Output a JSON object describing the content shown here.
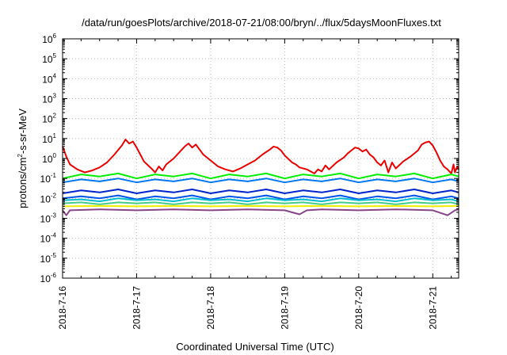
{
  "chart_data": {
    "type": "line",
    "title": "/data/run/goesPlots/archive/2018-07-21/08:00/bryn/../flux/5daysMoonFluxes.txt",
    "xlabel": "Coordinated Universal Time (UTC)",
    "ylabel_base": "protons/cm",
    "ylabel_exp": "2",
    "ylabel_rest": "-s-sr-MeV",
    "y_scale": "log",
    "ylim_exponent": [
      -6,
      6
    ],
    "y_tick_base": "10",
    "y_tick_exponents": [
      "-6",
      "-5",
      "-4",
      "-3",
      "-2",
      "-1",
      "0",
      "1",
      "2",
      "3",
      "4",
      "5",
      "6"
    ],
    "x_unit": "days since 2018-7-16 00:00 UTC",
    "xlim": [
      0,
      5.35
    ],
    "x_tick_positions": [
      0,
      1,
      2,
      3,
      4,
      5
    ],
    "x_tick_labels": [
      "2018-7-16",
      "2018-7-17",
      "2018-7-18",
      "2018-7-19",
      "2018-7-20",
      "2018-7-21"
    ],
    "grid": true,
    "legend": "none",
    "series": [
      {
        "color": "#ee0000",
        "points": [
          [
            0.0,
            0.6
          ],
          [
            0.05,
            0.1
          ],
          [
            0.1,
            -0.3
          ],
          [
            0.2,
            -0.55
          ],
          [
            0.3,
            -0.7
          ],
          [
            0.4,
            -0.6
          ],
          [
            0.5,
            -0.45
          ],
          [
            0.6,
            -0.2
          ],
          [
            0.7,
            0.2
          ],
          [
            0.8,
            0.65
          ],
          [
            0.85,
            0.95
          ],
          [
            0.9,
            0.75
          ],
          [
            0.95,
            0.85
          ],
          [
            1.0,
            0.55
          ],
          [
            1.05,
            0.2
          ],
          [
            1.1,
            -0.15
          ],
          [
            1.2,
            -0.5
          ],
          [
            1.25,
            -0.7
          ],
          [
            1.3,
            -0.4
          ],
          [
            1.35,
            -0.6
          ],
          [
            1.4,
            -0.3
          ],
          [
            1.5,
            0.0
          ],
          [
            1.6,
            0.4
          ],
          [
            1.65,
            0.6
          ],
          [
            1.7,
            0.75
          ],
          [
            1.75,
            0.55
          ],
          [
            1.8,
            0.7
          ],
          [
            1.85,
            0.45
          ],
          [
            1.9,
            0.2
          ],
          [
            2.0,
            -0.1
          ],
          [
            2.1,
            -0.4
          ],
          [
            2.2,
            -0.55
          ],
          [
            2.3,
            -0.65
          ],
          [
            2.4,
            -0.5
          ],
          [
            2.5,
            -0.3
          ],
          [
            2.6,
            -0.1
          ],
          [
            2.7,
            0.2
          ],
          [
            2.8,
            0.45
          ],
          [
            2.85,
            0.6
          ],
          [
            2.9,
            0.55
          ],
          [
            2.95,
            0.4
          ],
          [
            3.0,
            0.15
          ],
          [
            3.1,
            -0.2
          ],
          [
            3.15,
            -0.3
          ],
          [
            3.2,
            -0.45
          ],
          [
            3.3,
            -0.55
          ],
          [
            3.4,
            -0.75
          ],
          [
            3.45,
            -0.55
          ],
          [
            3.5,
            -0.65
          ],
          [
            3.55,
            -0.35
          ],
          [
            3.6,
            -0.55
          ],
          [
            3.7,
            -0.2
          ],
          [
            3.8,
            0.05
          ],
          [
            3.85,
            0.25
          ],
          [
            3.9,
            0.4
          ],
          [
            3.95,
            0.55
          ],
          [
            4.0,
            0.5
          ],
          [
            4.05,
            0.35
          ],
          [
            4.1,
            0.45
          ],
          [
            4.15,
            0.2
          ],
          [
            4.2,
            0.05
          ],
          [
            4.25,
            -0.2
          ],
          [
            4.3,
            -0.35
          ],
          [
            4.35,
            -0.1
          ],
          [
            4.4,
            -0.7
          ],
          [
            4.45,
            -0.2
          ],
          [
            4.5,
            -0.5
          ],
          [
            4.6,
            -0.15
          ],
          [
            4.7,
            0.1
          ],
          [
            4.8,
            0.4
          ],
          [
            4.85,
            0.7
          ],
          [
            4.9,
            0.8
          ],
          [
            4.95,
            0.85
          ],
          [
            5.0,
            0.65
          ],
          [
            5.05,
            0.3
          ],
          [
            5.1,
            -0.1
          ],
          [
            5.15,
            -0.4
          ],
          [
            5.2,
            -0.55
          ],
          [
            5.25,
            -0.75
          ],
          [
            5.28,
            -0.3
          ],
          [
            5.3,
            -0.7
          ],
          [
            5.33,
            -0.4
          ],
          [
            5.35,
            -0.55
          ]
        ]
      },
      {
        "color": "#00ee00",
        "points": [
          [
            0.0,
            -1.0
          ],
          [
            0.25,
            -0.8
          ],
          [
            0.5,
            -0.9
          ],
          [
            0.75,
            -0.75
          ],
          [
            1.0,
            -1.0
          ],
          [
            1.25,
            -0.8
          ],
          [
            1.5,
            -0.9
          ],
          [
            1.75,
            -0.75
          ],
          [
            2.0,
            -1.0
          ],
          [
            2.25,
            -0.8
          ],
          [
            2.5,
            -0.9
          ],
          [
            2.75,
            -0.75
          ],
          [
            3.0,
            -1.0
          ],
          [
            3.25,
            -0.8
          ],
          [
            3.5,
            -0.9
          ],
          [
            3.75,
            -0.75
          ],
          [
            4.0,
            -1.0
          ],
          [
            4.25,
            -0.8
          ],
          [
            4.5,
            -0.9
          ],
          [
            4.75,
            -0.75
          ],
          [
            5.0,
            -1.0
          ],
          [
            5.25,
            -0.8
          ],
          [
            5.35,
            -0.9
          ]
        ]
      },
      {
        "color": "#0077ee",
        "points": [
          [
            0.0,
            -1.2
          ],
          [
            0.25,
            -1.05
          ],
          [
            0.5,
            -1.15
          ],
          [
            0.75,
            -1.0
          ],
          [
            1.0,
            -1.2
          ],
          [
            1.25,
            -1.05
          ],
          [
            1.5,
            -1.15
          ],
          [
            1.75,
            -1.0
          ],
          [
            2.0,
            -1.2
          ],
          [
            2.25,
            -1.05
          ],
          [
            2.5,
            -1.15
          ],
          [
            2.75,
            -1.0
          ],
          [
            3.0,
            -1.2
          ],
          [
            3.25,
            -1.05
          ],
          [
            3.5,
            -1.15
          ],
          [
            3.75,
            -1.0
          ],
          [
            4.0,
            -1.2
          ],
          [
            4.25,
            -1.05
          ],
          [
            4.5,
            -1.15
          ],
          [
            4.75,
            -1.0
          ],
          [
            5.0,
            -1.2
          ],
          [
            5.25,
            -1.05
          ],
          [
            5.35,
            -1.15
          ]
        ]
      },
      {
        "color": "#0022cc",
        "points": [
          [
            0.0,
            -1.75
          ],
          [
            0.25,
            -1.6
          ],
          [
            0.5,
            -1.7
          ],
          [
            0.75,
            -1.55
          ],
          [
            1.0,
            -1.75
          ],
          [
            1.25,
            -1.6
          ],
          [
            1.5,
            -1.7
          ],
          [
            1.75,
            -1.55
          ],
          [
            2.0,
            -1.75
          ],
          [
            2.25,
            -1.6
          ],
          [
            2.5,
            -1.7
          ],
          [
            2.75,
            -1.55
          ],
          [
            3.0,
            -1.75
          ],
          [
            3.25,
            -1.6
          ],
          [
            3.5,
            -1.7
          ],
          [
            3.75,
            -1.55
          ],
          [
            4.0,
            -1.75
          ],
          [
            4.25,
            -1.6
          ],
          [
            4.5,
            -1.7
          ],
          [
            4.75,
            -1.55
          ],
          [
            5.0,
            -1.75
          ],
          [
            5.25,
            -1.6
          ],
          [
            5.35,
            -1.7
          ]
        ]
      },
      {
        "color": "#0055ee",
        "points": [
          [
            0.0,
            -2.0
          ],
          [
            0.25,
            -1.9
          ],
          [
            0.5,
            -2.0
          ],
          [
            0.75,
            -1.85
          ],
          [
            1.0,
            -2.05
          ],
          [
            1.25,
            -1.9
          ],
          [
            1.5,
            -2.0
          ],
          [
            1.75,
            -1.85
          ],
          [
            2.0,
            -2.05
          ],
          [
            2.25,
            -1.9
          ],
          [
            2.5,
            -2.0
          ],
          [
            2.75,
            -1.85
          ],
          [
            3.0,
            -2.05
          ],
          [
            3.25,
            -1.9
          ],
          [
            3.5,
            -2.0
          ],
          [
            3.75,
            -1.85
          ],
          [
            4.0,
            -2.05
          ],
          [
            4.25,
            -1.9
          ],
          [
            4.5,
            -2.0
          ],
          [
            4.75,
            -1.85
          ],
          [
            5.0,
            -2.05
          ],
          [
            5.25,
            -1.9
          ],
          [
            5.35,
            -2.0
          ]
        ]
      },
      {
        "color": "#00bbcc",
        "points": [
          [
            0.0,
            -2.1
          ],
          [
            0.25,
            -2.05
          ],
          [
            0.5,
            -2.15
          ],
          [
            0.75,
            -2.0
          ],
          [
            1.0,
            -2.1
          ],
          [
            1.25,
            -2.05
          ],
          [
            1.5,
            -2.15
          ],
          [
            1.75,
            -2.0
          ],
          [
            2.0,
            -2.1
          ],
          [
            2.25,
            -2.05
          ],
          [
            2.5,
            -2.15
          ],
          [
            2.75,
            -2.0
          ],
          [
            3.0,
            -2.1
          ],
          [
            3.25,
            -2.05
          ],
          [
            3.5,
            -2.15
          ],
          [
            3.75,
            -2.0
          ],
          [
            4.0,
            -2.1
          ],
          [
            4.25,
            -2.05
          ],
          [
            4.5,
            -2.15
          ],
          [
            4.75,
            -2.0
          ],
          [
            5.0,
            -2.1
          ],
          [
            5.25,
            -2.05
          ],
          [
            5.35,
            -2.15
          ]
        ]
      },
      {
        "color": "#44cc88",
        "points": [
          [
            0.0,
            -2.25
          ],
          [
            0.25,
            -2.2
          ],
          [
            0.5,
            -2.3
          ],
          [
            0.75,
            -2.2
          ],
          [
            1.0,
            -2.25
          ],
          [
            1.25,
            -2.2
          ],
          [
            1.5,
            -2.3
          ],
          [
            1.75,
            -2.2
          ],
          [
            2.0,
            -2.25
          ],
          [
            2.25,
            -2.2
          ],
          [
            2.5,
            -2.3
          ],
          [
            2.75,
            -2.2
          ],
          [
            3.0,
            -2.25
          ],
          [
            3.25,
            -2.2
          ],
          [
            3.5,
            -2.3
          ],
          [
            3.75,
            -2.2
          ],
          [
            4.0,
            -2.25
          ],
          [
            4.25,
            -2.2
          ],
          [
            4.5,
            -2.3
          ],
          [
            4.75,
            -2.2
          ],
          [
            5.0,
            -2.25
          ],
          [
            5.25,
            -2.2
          ],
          [
            5.35,
            -2.3
          ]
        ]
      },
      {
        "color": "#eeee00",
        "points": [
          [
            0.0,
            -2.4
          ],
          [
            0.5,
            -2.38
          ],
          [
            1.0,
            -2.4
          ],
          [
            1.5,
            -2.38
          ],
          [
            2.0,
            -2.4
          ],
          [
            2.5,
            -2.38
          ],
          [
            3.0,
            -2.4
          ],
          [
            3.5,
            -2.38
          ],
          [
            4.0,
            -2.4
          ],
          [
            4.5,
            -2.38
          ],
          [
            5.0,
            -2.4
          ],
          [
            5.35,
            -2.38
          ]
        ]
      },
      {
        "color": "#884488",
        "points": [
          [
            0.0,
            -2.6
          ],
          [
            0.05,
            -2.85
          ],
          [
            0.1,
            -2.6
          ],
          [
            0.5,
            -2.55
          ],
          [
            1.0,
            -2.6
          ],
          [
            1.5,
            -2.55
          ],
          [
            2.0,
            -2.6
          ],
          [
            2.5,
            -2.55
          ],
          [
            3.0,
            -2.6
          ],
          [
            3.2,
            -2.8
          ],
          [
            3.3,
            -2.6
          ],
          [
            3.5,
            -2.55
          ],
          [
            4.0,
            -2.6
          ],
          [
            4.5,
            -2.55
          ],
          [
            5.0,
            -2.6
          ],
          [
            5.2,
            -2.85
          ],
          [
            5.3,
            -2.6
          ],
          [
            5.35,
            -2.55
          ]
        ]
      }
    ]
  }
}
